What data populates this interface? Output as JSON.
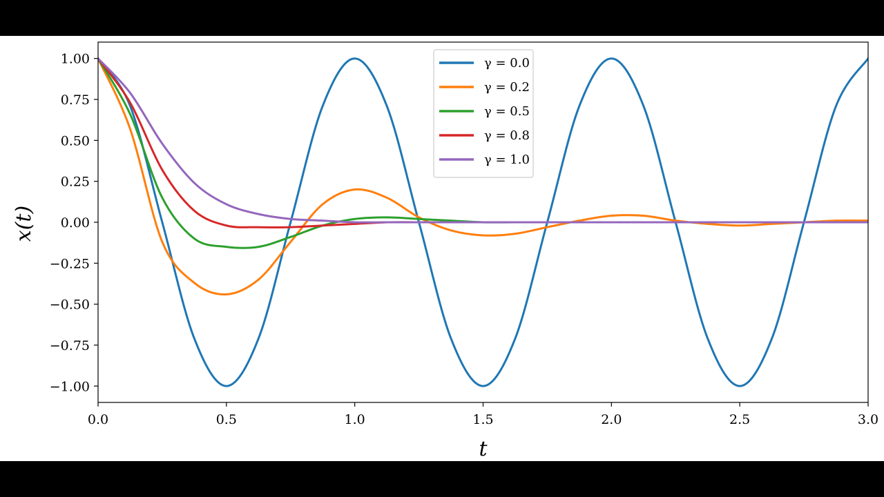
{
  "chart_data": {
    "type": "line",
    "xlabel": "t",
    "ylabel": "x(t)",
    "xlim": [
      0.0,
      3.0
    ],
    "ylim": [
      -1.1,
      1.1
    ],
    "x_ticks": [
      "0.0",
      "0.5",
      "1.0",
      "1.5",
      "2.0",
      "2.5",
      "3.0"
    ],
    "y_ticks": [
      "1.00",
      "0.75",
      "0.50",
      "0.25",
      "0.00",
      "−0.25",
      "−0.50",
      "−0.75",
      "−1.00"
    ],
    "grid": false,
    "legend_position": "top-center",
    "series": [
      {
        "name": "γ = 0.0",
        "color": "#1f77b4",
        "x": [
          0,
          0.125,
          0.25,
          0.375,
          0.5,
          0.625,
          0.75,
          0.875,
          1.0,
          1.125,
          1.25,
          1.375,
          1.5,
          1.625,
          1.75,
          1.875,
          2.0,
          2.125,
          2.25,
          2.375,
          2.5,
          2.625,
          2.75,
          2.875,
          3.0
        ],
        "y": [
          1.0,
          0.71,
          0.0,
          -0.71,
          -1.0,
          -0.71,
          0.0,
          0.71,
          1.0,
          0.71,
          0.0,
          -0.71,
          -1.0,
          -0.71,
          0.0,
          0.71,
          1.0,
          0.71,
          0.0,
          -0.71,
          -1.0,
          -0.71,
          0.0,
          0.71,
          1.0
        ]
      },
      {
        "name": "γ = 0.2",
        "color": "#ff7f0e",
        "x": [
          0,
          0.125,
          0.25,
          0.375,
          0.5,
          0.625,
          0.75,
          0.875,
          1.0,
          1.125,
          1.25,
          1.375,
          1.5,
          1.625,
          1.75,
          1.875,
          2.0,
          2.125,
          2.25,
          2.375,
          2.5,
          2.625,
          2.75,
          2.875,
          3.0
        ],
        "y": [
          1.0,
          0.57,
          -0.12,
          -0.37,
          -0.44,
          -0.35,
          -0.12,
          0.11,
          0.2,
          0.15,
          0.03,
          -0.05,
          -0.08,
          -0.07,
          -0.03,
          0.01,
          0.04,
          0.04,
          0.01,
          -0.01,
          -0.02,
          -0.01,
          0.0,
          0.01,
          0.01
        ]
      },
      {
        "name": "γ = 0.5",
        "color": "#2ca02c",
        "x": [
          0,
          0.125,
          0.25,
          0.375,
          0.5,
          0.625,
          0.75,
          0.875,
          1.0,
          1.125,
          1.25,
          1.375,
          1.5,
          1.625,
          1.75,
          1.875,
          2.0,
          2.125,
          2.25,
          2.375,
          2.5,
          2.625,
          2.75,
          2.875,
          3.0
        ],
        "y": [
          1.0,
          0.66,
          0.15,
          -0.1,
          -0.15,
          -0.15,
          -0.09,
          -0.02,
          0.02,
          0.03,
          0.02,
          0.01,
          0.0,
          0.0,
          0.0,
          0.0,
          0.0,
          0.0,
          0.0,
          0.0,
          0.0,
          0.0,
          0.0,
          0.0,
          0.0
        ]
      },
      {
        "name": "γ = 0.8",
        "color": "#d62728",
        "x": [
          0,
          0.125,
          0.25,
          0.375,
          0.5,
          0.625,
          0.75,
          0.875,
          1.0,
          1.125,
          1.25,
          1.375,
          1.5,
          1.625,
          1.75,
          1.875,
          2.0,
          2.125,
          2.25,
          2.375,
          2.5,
          2.625,
          2.75,
          2.875,
          3.0
        ],
        "y": [
          1.0,
          0.73,
          0.32,
          0.07,
          -0.02,
          -0.03,
          -0.03,
          -0.02,
          -0.01,
          0.0,
          0.0,
          0.0,
          0.0,
          0.0,
          0.0,
          0.0,
          0.0,
          0.0,
          0.0,
          0.0,
          0.0,
          0.0,
          0.0,
          0.0,
          0.0
        ]
      },
      {
        "name": "γ = 1.0",
        "color": "#9467bd",
        "x": [
          0,
          0.125,
          0.25,
          0.375,
          0.5,
          0.625,
          0.75,
          0.875,
          1.0,
          1.125,
          1.25,
          1.375,
          1.5,
          1.625,
          1.75,
          1.875,
          2.0,
          2.125,
          2.25,
          2.375,
          2.5,
          2.625,
          2.75,
          2.875,
          3.0
        ],
        "y": [
          1.0,
          0.79,
          0.48,
          0.24,
          0.11,
          0.05,
          0.02,
          0.01,
          0.0,
          0.0,
          0.0,
          0.0,
          0.0,
          0.0,
          0.0,
          0.0,
          0.0,
          0.0,
          0.0,
          0.0,
          0.0,
          0.0,
          0.0,
          0.0,
          0.0
        ]
      }
    ]
  }
}
